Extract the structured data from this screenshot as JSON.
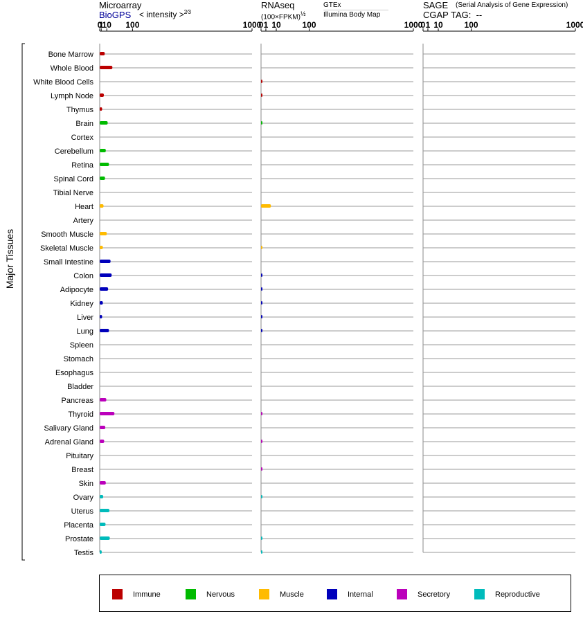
{
  "headers": {
    "microarray": {
      "title": "Microarray",
      "source": "BioGPS",
      "intensity_label": "< intensity >",
      "intensity_exp": "2⁄3"
    },
    "rnaseq": {
      "title": "RNAseq",
      "unit": "(100×FPKM)",
      "unit_exp": "½",
      "source_top": "GTEx",
      "source_bottom": "Illumina Body Map"
    },
    "sage": {
      "title": "SAGE",
      "subtitle": "(Serial Analysis of Gene Expression)",
      "cgap_label": "CGAP TAG:",
      "cgap_value": "--"
    }
  },
  "y_axis_label": "Major Tissues",
  "category_colors": {
    "Immune": "#bb0000",
    "Nervous": "#00bb00",
    "Muscle": "#ffbb00",
    "Internal": "#0000bb",
    "Secretory": "#bb00bb",
    "Reproductive": "#00bbbb"
  },
  "legend": [
    {
      "label": "Immune",
      "color": "#bb0000"
    },
    {
      "label": "Nervous",
      "color": "#00bb00"
    },
    {
      "label": "Muscle",
      "color": "#ffbb00"
    },
    {
      "label": "Internal",
      "color": "#0000bb"
    },
    {
      "label": "Secretory",
      "color": "#bb00bb"
    },
    {
      "label": "Reproductive",
      "color": "#00bbbb"
    }
  ],
  "chart_data": {
    "type": "bar",
    "orientation": "horizontal",
    "axis_ticks": [
      0,
      1,
      10,
      100,
      1000
    ],
    "xlim": [
      0,
      1000
    ],
    "grid": true,
    "tissues": [
      {
        "name": "Bone Marrow",
        "category": "Immune",
        "microarray": 6,
        "rnaseq": null
      },
      {
        "name": "Whole Blood",
        "category": "Immune",
        "microarray": 24,
        "rnaseq": null
      },
      {
        "name": "White Blood Cells",
        "category": "Immune",
        "microarray": null,
        "rnaseq": 0.02
      },
      {
        "name": "Lymph Node",
        "category": "Immune",
        "microarray": 4.5,
        "rnaseq": 0.02
      },
      {
        "name": "Thymus",
        "category": "Immune",
        "microarray": 2,
        "rnaseq": null
      },
      {
        "name": "Brain",
        "category": "Nervous",
        "microarray": 12,
        "rnaseq": 0.02
      },
      {
        "name": "Cortex",
        "category": "Nervous",
        "microarray": null,
        "rnaseq": null
      },
      {
        "name": "Cerebellum",
        "category": "Nervous",
        "microarray": 8,
        "rnaseq": null
      },
      {
        "name": "Retina",
        "category": "Nervous",
        "microarray": 15,
        "rnaseq": null
      },
      {
        "name": "Spinal Cord",
        "category": "Nervous",
        "microarray": 6.5,
        "rnaseq": null
      },
      {
        "name": "Tibial Nerve",
        "category": "Nervous",
        "microarray": null,
        "rnaseq": null
      },
      {
        "name": "Heart",
        "category": "Muscle",
        "microarray": 4,
        "rnaseq": 4.2
      },
      {
        "name": "Artery",
        "category": "Muscle",
        "microarray": null,
        "rnaseq": null
      },
      {
        "name": "Smooth Muscle",
        "category": "Muscle",
        "microarray": 10,
        "rnaseq": null
      },
      {
        "name": "Skeletal Muscle",
        "category": "Muscle",
        "microarray": 3,
        "rnaseq": 0.02
      },
      {
        "name": "Small Intestine",
        "category": "Internal",
        "microarray": 19,
        "rnaseq": null
      },
      {
        "name": "Colon",
        "category": "Internal",
        "microarray": 22,
        "rnaseq": 0.03
      },
      {
        "name": "Adipocyte",
        "category": "Internal",
        "microarray": 13,
        "rnaseq": 0.03
      },
      {
        "name": "Kidney",
        "category": "Internal",
        "microarray": 3,
        "rnaseq": 0.03
      },
      {
        "name": "Liver",
        "category": "Internal",
        "microarray": 2,
        "rnaseq": 0.03
      },
      {
        "name": "Lung",
        "category": "Internal",
        "microarray": 15,
        "rnaseq": 0.03
      },
      {
        "name": "Spleen",
        "category": "Immune",
        "microarray": null,
        "rnaseq": null
      },
      {
        "name": "Stomach",
        "category": "Internal",
        "microarray": null,
        "rnaseq": null
      },
      {
        "name": "Esophagus",
        "category": "Internal",
        "microarray": null,
        "rnaseq": null
      },
      {
        "name": "Bladder",
        "category": "Internal",
        "microarray": null,
        "rnaseq": null
      },
      {
        "name": "Pancreas",
        "category": "Secretory",
        "microarray": 9,
        "rnaseq": null
      },
      {
        "name": "Thyroid",
        "category": "Secretory",
        "microarray": 30,
        "rnaseq": 0.02
      },
      {
        "name": "Salivary Gland",
        "category": "Secretory",
        "microarray": 7,
        "rnaseq": null
      },
      {
        "name": "Adrenal Gland",
        "category": "Secretory",
        "microarray": 5,
        "rnaseq": 0.02
      },
      {
        "name": "Pituitary",
        "category": "Secretory",
        "microarray": null,
        "rnaseq": null
      },
      {
        "name": "Breast",
        "category": "Secretory",
        "microarray": null,
        "rnaseq": 0.02
      },
      {
        "name": "Skin",
        "category": "Secretory",
        "microarray": 8,
        "rnaseq": null
      },
      {
        "name": "Ovary",
        "category": "Reproductive",
        "microarray": 3.5,
        "rnaseq": 0.02
      },
      {
        "name": "Uterus",
        "category": "Reproductive",
        "microarray": 16,
        "rnaseq": null
      },
      {
        "name": "Placenta",
        "category": "Reproductive",
        "microarray": 7.5,
        "rnaseq": null
      },
      {
        "name": "Prostate",
        "category": "Reproductive",
        "microarray": 17,
        "rnaseq": 0.02
      },
      {
        "name": "Testis",
        "category": "Reproductive",
        "microarray": 1.5,
        "rnaseq": 0.03
      }
    ]
  }
}
